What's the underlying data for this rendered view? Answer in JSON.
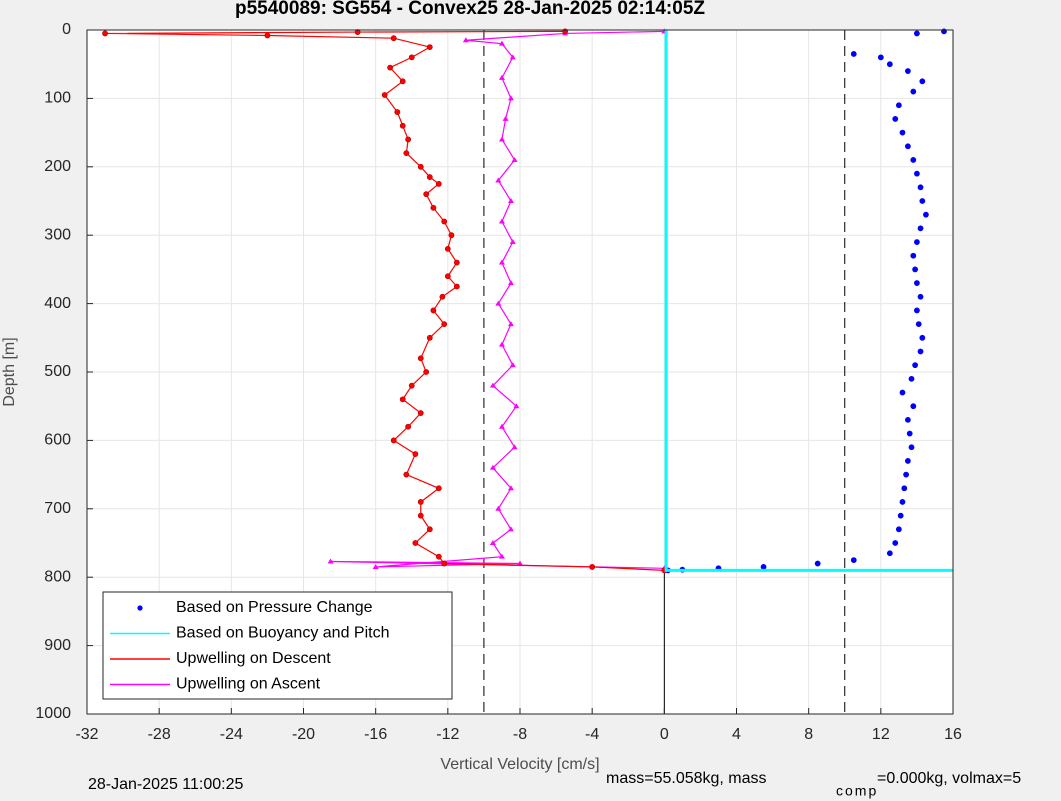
{
  "chart_data": {
    "type": "scatter",
    "title": "p5540089: SG554 - Convex25 28-Jan-2025 02:14:05Z",
    "xlabel": "Vertical Velocity [cm/s]",
    "ylabel": "Depth [m]",
    "xlim": [
      -32,
      16
    ],
    "ylim": [
      0,
      1000
    ],
    "y_reversed": true,
    "xticks": [
      -32,
      -28,
      -24,
      -20,
      -16,
      -12,
      -8,
      -4,
      0,
      4,
      8,
      12,
      16
    ],
    "yticks": [
      0,
      100,
      200,
      300,
      400,
      500,
      600,
      700,
      800,
      900,
      1000
    ],
    "grid": true,
    "legend": "lower left",
    "vlines": [
      {
        "x": -10,
        "style": "dashed"
      },
      {
        "x": 10,
        "style": "dashed"
      },
      {
        "x": 0,
        "y": [
          790,
          1000
        ],
        "style": "solid"
      }
    ],
    "series": [
      {
        "name": "Based on Pressure Change",
        "color": "#0000ff",
        "line": false,
        "marker": "dot",
        "x": [
          15.5,
          14,
          10.5,
          12,
          12.5,
          13.5,
          14.3,
          13.8,
          13,
          12.8,
          13.2,
          13.5,
          13.8,
          14,
          14.2,
          14.3,
          14.5,
          14.2,
          14,
          13.8,
          13.9,
          14,
          14.2,
          14,
          14.1,
          14.3,
          14.2,
          13.9,
          13.7,
          13.2,
          13.8,
          13.5,
          13.6,
          13.7,
          13.5,
          13.4,
          13.3,
          13.2,
          13.1,
          13,
          12.8,
          12.5,
          10.5,
          8.5,
          5.5,
          3,
          1,
          0.2
        ],
        "y": [
          2,
          5,
          35,
          40,
          50,
          60,
          75,
          90,
          110,
          130,
          150,
          170,
          190,
          210,
          230,
          250,
          270,
          290,
          310,
          330,
          350,
          370,
          390,
          410,
          430,
          450,
          470,
          490,
          510,
          530,
          550,
          570,
          590,
          610,
          630,
          650,
          670,
          690,
          710,
          730,
          750,
          765,
          775,
          780,
          785,
          787,
          789,
          790
        ]
      },
      {
        "name": "Based on Buoyancy and Pitch",
        "color": "#00ffff",
        "line": true,
        "marker": "none",
        "x": [
          0.1,
          0.1,
          16
        ],
        "y": [
          0,
          790,
          790
        ]
      },
      {
        "name": "Upwelling on Descent",
        "color": "#ff0000",
        "line": true,
        "marker": "dot",
        "x": [
          -5.5,
          -17,
          -31,
          -22,
          -15,
          -13,
          -14,
          -15.2,
          -14.5,
          -15.5,
          -14.8,
          -14.5,
          -14.2,
          -14.3,
          -13.5,
          -13,
          -12.5,
          -13.2,
          -12.8,
          -12.2,
          -11.8,
          -12,
          -11.5,
          -12,
          -11.5,
          -12.3,
          -12.8,
          -12.2,
          -13,
          -13.5,
          -13.2,
          -14,
          -14.5,
          -13.5,
          -14.2,
          -15,
          -13.8,
          -14.3,
          -12.5,
          -13.5,
          -13.5,
          -13,
          -13.8,
          -12.5,
          -12.2,
          -4,
          0
        ],
        "y": [
          2,
          3,
          5,
          8,
          12,
          25,
          40,
          55,
          75,
          95,
          120,
          140,
          160,
          180,
          200,
          215,
          225,
          240,
          260,
          280,
          300,
          320,
          340,
          360,
          375,
          390,
          410,
          430,
          450,
          480,
          500,
          520,
          540,
          560,
          580,
          600,
          620,
          650,
          670,
          690,
          710,
          730,
          750,
          770,
          780,
          785,
          790
        ]
      },
      {
        "name": "Upwelling on Ascent",
        "color": "#ff00ff",
        "line": true,
        "marker": "triangle",
        "x": [
          0,
          -18.5,
          -8,
          -16,
          -9,
          -9.5,
          -8.5,
          -9.2,
          -8.5,
          -9.5,
          -8.3,
          -9,
          -8.2,
          -9.5,
          -8.4,
          -9,
          -8.5,
          -9.2,
          -8.5,
          -9,
          -8.4,
          -9,
          -8.5,
          -9.2,
          -8.3,
          -9,
          -8.8,
          -8.5,
          -9,
          -8.4,
          -9,
          -11,
          -5.5,
          0
        ],
        "y": [
          787,
          777,
          780,
          785,
          770,
          750,
          730,
          700,
          670,
          640,
          610,
          580,
          550,
          520,
          490,
          460,
          430,
          400,
          370,
          340,
          310,
          280,
          250,
          220,
          190,
          160,
          130,
          100,
          70,
          40,
          20,
          15,
          5,
          2
        ]
      }
    ],
    "footer": {
      "left": "28-Jan-2025 11:00:25",
      "right": [
        "mass=55.058kg, mass",
        "comp",
        "=0.000kg, volmax=5"
      ]
    }
  }
}
